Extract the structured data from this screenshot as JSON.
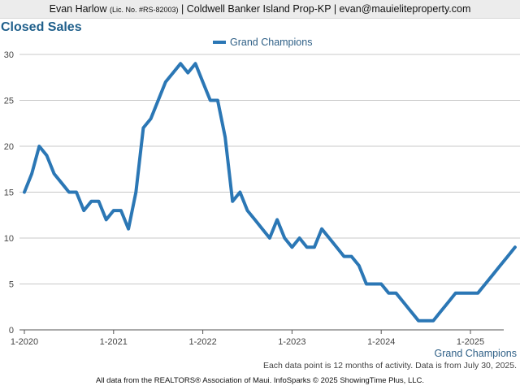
{
  "header": {
    "agent_name": "Evan Harlow",
    "license": "(Lic. No. #RS-82003)",
    "rest": "| Coldwell Banker Island Prop-KP | evan@mauieliteproperty.com"
  },
  "colors": {
    "series": "#2b77b5",
    "grid": "#c8c8c8",
    "title": "#1f5f8b"
  },
  "chart_data": {
    "type": "line",
    "title": "Closed Sales",
    "xlabel": "",
    "ylabel": "",
    "ylim": [
      0,
      30
    ],
    "yticks": [
      "0",
      "5",
      "10",
      "15",
      "20",
      "25",
      "30"
    ],
    "xticks": [
      "1-2020",
      "1-2021",
      "1-2022",
      "1-2023",
      "1-2024",
      "1-2025"
    ],
    "grid": true,
    "legend_position": "top-center",
    "x_start": "2020-01",
    "x_end": "2025-07",
    "series": [
      {
        "name": "Grand Champions",
        "values": [
          15,
          17,
          20,
          19,
          17,
          16,
          15,
          15,
          13,
          14,
          14,
          12,
          13,
          13,
          11,
          15,
          22,
          23,
          25,
          27,
          28,
          29,
          28,
          29,
          27,
          25,
          25,
          21,
          14,
          15,
          13,
          12,
          11,
          10,
          12,
          10,
          9,
          10,
          9,
          9,
          11,
          10,
          9,
          8,
          8,
          7,
          5,
          5,
          5,
          4,
          4,
          3,
          2,
          1,
          1,
          1,
          2,
          3,
          4,
          4,
          4,
          4,
          5,
          6,
          7,
          8,
          9
        ]
      }
    ]
  },
  "footer": {
    "series_label": "Grand Champions",
    "note": "Each data point is 12 months of activity. Data is from July 30, 2025.",
    "copyright": "All data from the REALTORS® Association of Maui. InfoSparks © 2025 ShowingTime Plus, LLC."
  }
}
